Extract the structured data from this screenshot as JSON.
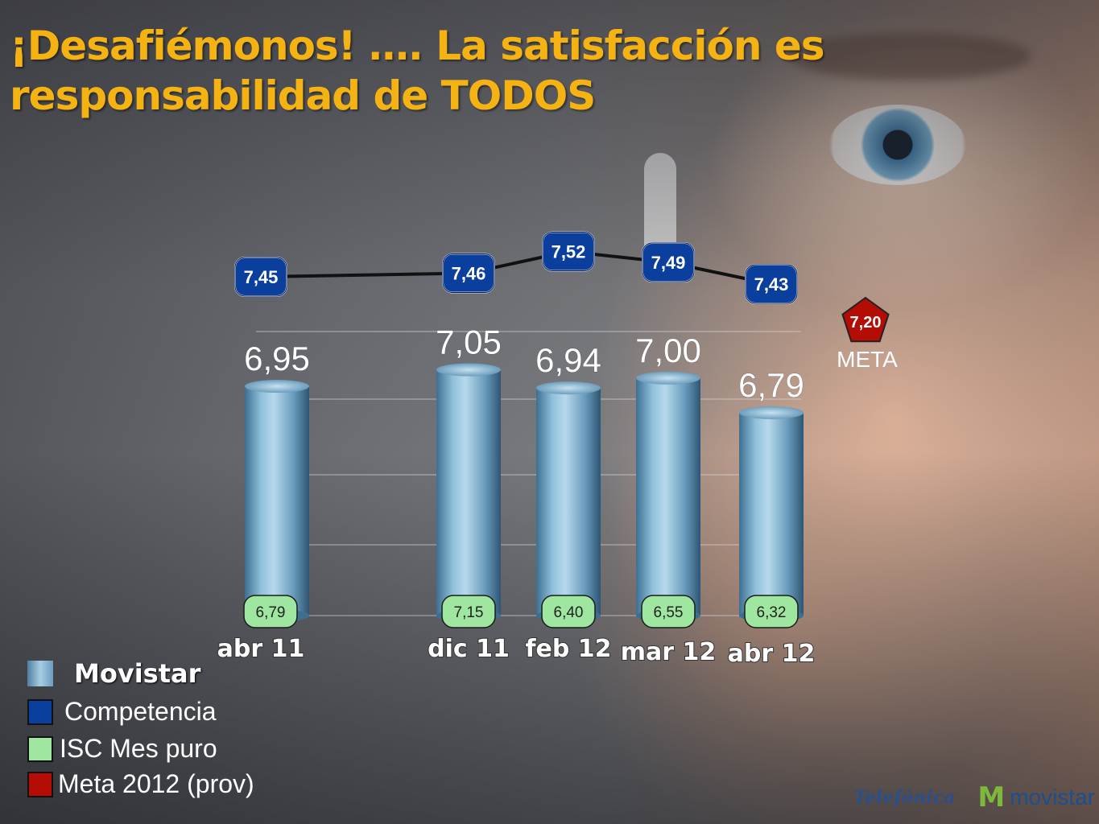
{
  "title": "¡Desafiémonos! …. La satisfacción es responsabilidad de TODOS",
  "chart_data": {
    "type": "bar",
    "categories": [
      "abr 11",
      "dic 11",
      "feb 12",
      "mar 12",
      "abr 12"
    ],
    "series": [
      {
        "name": "Movistar",
        "values": [
          6.95,
          7.05,
          6.94,
          7.0,
          6.79
        ],
        "labels": [
          "6,95",
          "7,05",
          "6,94",
          "7,00",
          "6,79"
        ],
        "kind": "bar"
      },
      {
        "name": "Competencia",
        "values": [
          7.45,
          7.46,
          7.52,
          7.49,
          7.43
        ],
        "labels": [
          "7,45",
          "7,46",
          "7,52",
          "7,49",
          "7,43"
        ],
        "kind": "line"
      },
      {
        "name": "ISC Mes puro",
        "values": [
          6.79,
          7.15,
          6.4,
          6.55,
          6.32
        ],
        "labels": [
          "6,79",
          "7,15",
          "6,40",
          "6,55",
          "6,32"
        ],
        "kind": "label"
      }
    ],
    "meta": {
      "name": "Meta 2012 (prov)",
      "value": 7.2,
      "label": "7,20",
      "word": "META"
    },
    "grid": true,
    "legend_position": "bottom-left"
  },
  "legend": [
    {
      "label": "Movistar",
      "color": "#7fb0cf",
      "style": "movistar"
    },
    {
      "label": "Competencia",
      "color": "#0b3f9e",
      "style": "plain"
    },
    {
      "label": "ISC Mes puro",
      "color": "#9fe6a0",
      "style": "plain"
    },
    {
      "label": "Meta 2012 (prov)",
      "color": "#b40d05",
      "style": "plain"
    }
  ],
  "colors": {
    "bar_light": "#a9cde3",
    "bar_dark": "#4f7f9f",
    "competencia": "#0b3f9e",
    "isc": "#9fe6a0",
    "meta": "#b40d05",
    "title": "#f5b313"
  },
  "logos": {
    "telefonica": "Telefónica",
    "movistar": "movistar"
  }
}
